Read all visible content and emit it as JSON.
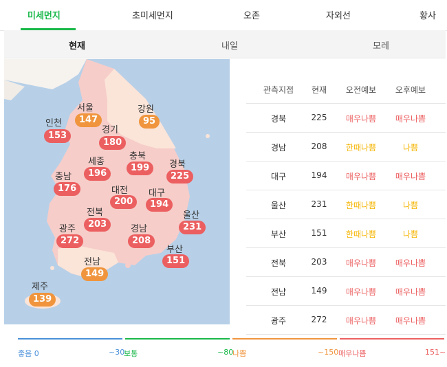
{
  "tabs": [
    "미세먼지",
    "초미세먼지",
    "오존",
    "자외선",
    "황사"
  ],
  "subtabs": [
    "현재",
    "내일",
    "모레"
  ],
  "map": {
    "regions": [
      {
        "name": "서울",
        "value": "147",
        "level": "orange"
      },
      {
        "name": "인천",
        "value": "153",
        "level": "red"
      },
      {
        "name": "강원",
        "value": "95",
        "level": "orange"
      },
      {
        "name": "경기",
        "value": "180",
        "level": "red"
      },
      {
        "name": "충북",
        "value": "199",
        "level": "red"
      },
      {
        "name": "세종",
        "value": "196",
        "level": "red"
      },
      {
        "name": "충남",
        "value": "176",
        "level": "red"
      },
      {
        "name": "경북",
        "value": "225",
        "level": "red"
      },
      {
        "name": "대전",
        "value": "200",
        "level": "red"
      },
      {
        "name": "대구",
        "value": "194",
        "level": "red"
      },
      {
        "name": "전북",
        "value": "203",
        "level": "red"
      },
      {
        "name": "광주",
        "value": "272",
        "level": "red"
      },
      {
        "name": "울산",
        "value": "231",
        "level": "red"
      },
      {
        "name": "경남",
        "value": "208",
        "level": "red"
      },
      {
        "name": "부산",
        "value": "151",
        "level": "red"
      },
      {
        "name": "전남",
        "value": "149",
        "level": "orange"
      },
      {
        "name": "제주",
        "value": "139",
        "level": "orange"
      }
    ]
  },
  "table": {
    "headers": [
      "관측지점",
      "현재",
      "오전예보",
      "오후예보"
    ],
    "rows": [
      {
        "site": "경북",
        "now": "225",
        "am": "매우나쁨",
        "pm": "매우나쁨"
      },
      {
        "site": "경남",
        "now": "208",
        "am": "한때나쁨",
        "pm": "나쁨"
      },
      {
        "site": "대구",
        "now": "194",
        "am": "매우나쁨",
        "pm": "매우나쁨"
      },
      {
        "site": "울산",
        "now": "231",
        "am": "한때나쁨",
        "pm": "나쁨"
      },
      {
        "site": "부산",
        "now": "151",
        "am": "한때나쁨",
        "pm": "나쁨"
      },
      {
        "site": "전북",
        "now": "203",
        "am": "매우나쁨",
        "pm": "매우나쁨"
      },
      {
        "site": "전남",
        "now": "149",
        "am": "매우나쁨",
        "pm": "매우나쁨"
      },
      {
        "site": "광주",
        "now": "272",
        "am": "매우나쁨",
        "pm": "매우나쁨"
      }
    ]
  },
  "legend": {
    "good": "좋음 0",
    "normal_range": "~30",
    "normal": "보통",
    "bad_range": "~80",
    "bad": "나쁨",
    "verybad_range": "~150",
    "verybad": "매우나쁨",
    "max": "151~"
  },
  "colors": {
    "accent": "#1ab84a",
    "red": "#ec5f60",
    "orange": "#f0953d",
    "yellow": "#f5b400",
    "blue": "#4a90d9",
    "green": "#1ab84a"
  }
}
